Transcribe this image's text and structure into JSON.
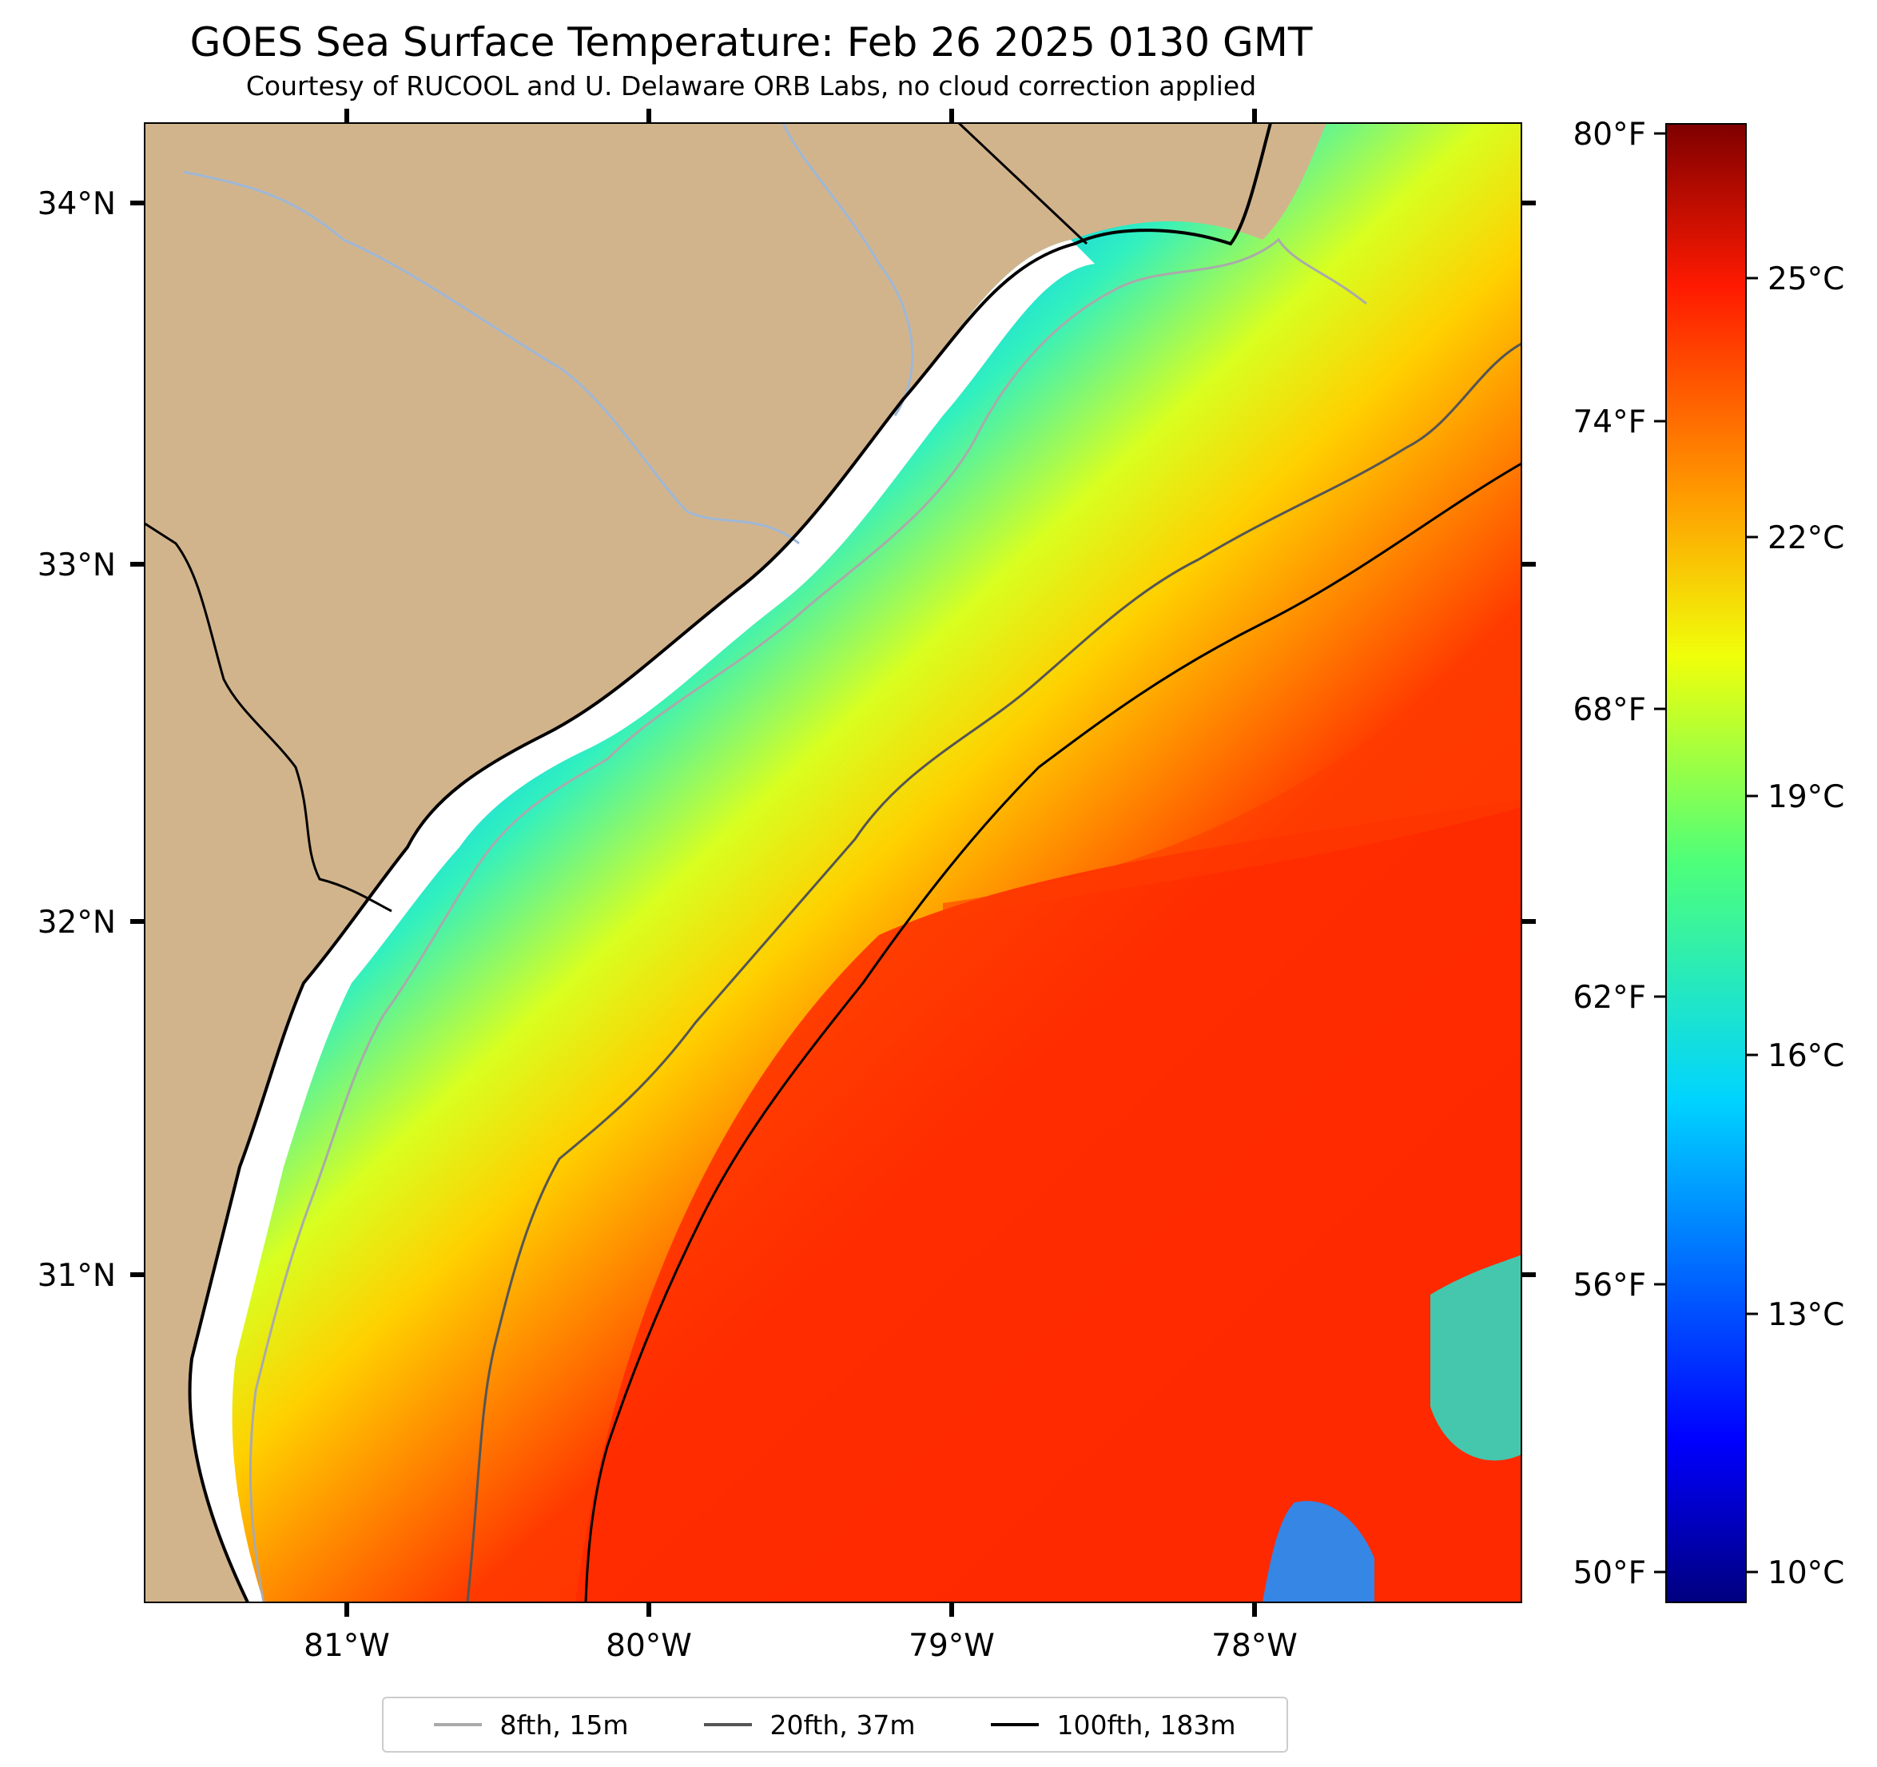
{
  "title": "GOES Sea Surface Temperature: Feb 26 2025 0130 GMT",
  "subtitle": "Courtesy of RUCOOL and U. Delaware ORB Labs, no cloud correction applied",
  "map": {
    "latitude_labels": [
      "34°N",
      "33°N",
      "32°N",
      "31°N"
    ],
    "longitude_labels": [
      "81°W",
      "80°W",
      "79°W",
      "78°W"
    ],
    "land_color": "#d2b48c",
    "ocean_cold_color": "#0a3cf0",
    "ocean_warm_color": "#ff2a00"
  },
  "colorbar": {
    "fahrenheit_labels": [
      "80°F",
      "74°F",
      "68°F",
      "62°F",
      "56°F",
      "50°F"
    ],
    "celsius_labels": [
      "25°C",
      "22°C",
      "19°C",
      "16°C",
      "13°C",
      "10°C"
    ],
    "colormap": "jet"
  },
  "legend": {
    "items": [
      {
        "label": "8fth, 15m",
        "color": "#aaaaaa"
      },
      {
        "label": "20fth, 37m",
        "color": "#555555"
      },
      {
        "label": "100fth, 183m",
        "color": "#000000"
      }
    ]
  }
}
